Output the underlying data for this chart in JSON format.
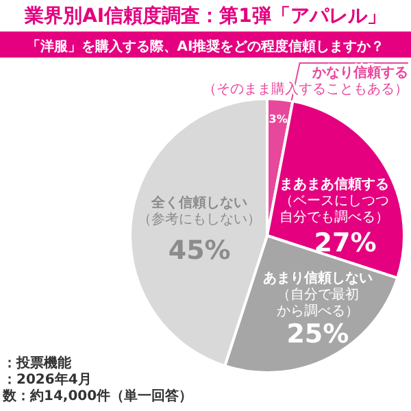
{
  "chart_data": {
    "type": "pie",
    "title": "業界別AI信頼度調査：第1弾「アパレル」",
    "subtitle": "「洋服」を購入する際、AI推奨をどの程度信頼しますか？",
    "categories": [
      "かなり信頼する（そのまま購入することもある）",
      "まあまあ信頼する（ベースにしつつ自分でも調べる）",
      "あまり信頼しない（自分で最初から調べる）",
      "全く信頼しない（参考にもしない）"
    ],
    "values": [
      3,
      27,
      25,
      45
    ],
    "colors": [
      "#e8489b",
      "#e4007f",
      "#a6a6a6",
      "#d9d9d9"
    ],
    "value_labels": [
      "3%",
      "27%",
      "25%",
      "45%"
    ],
    "annotations": [
      "：投票機能",
      "：2026年4月",
      "数：約14,000件（単一回答）"
    ]
  }
}
